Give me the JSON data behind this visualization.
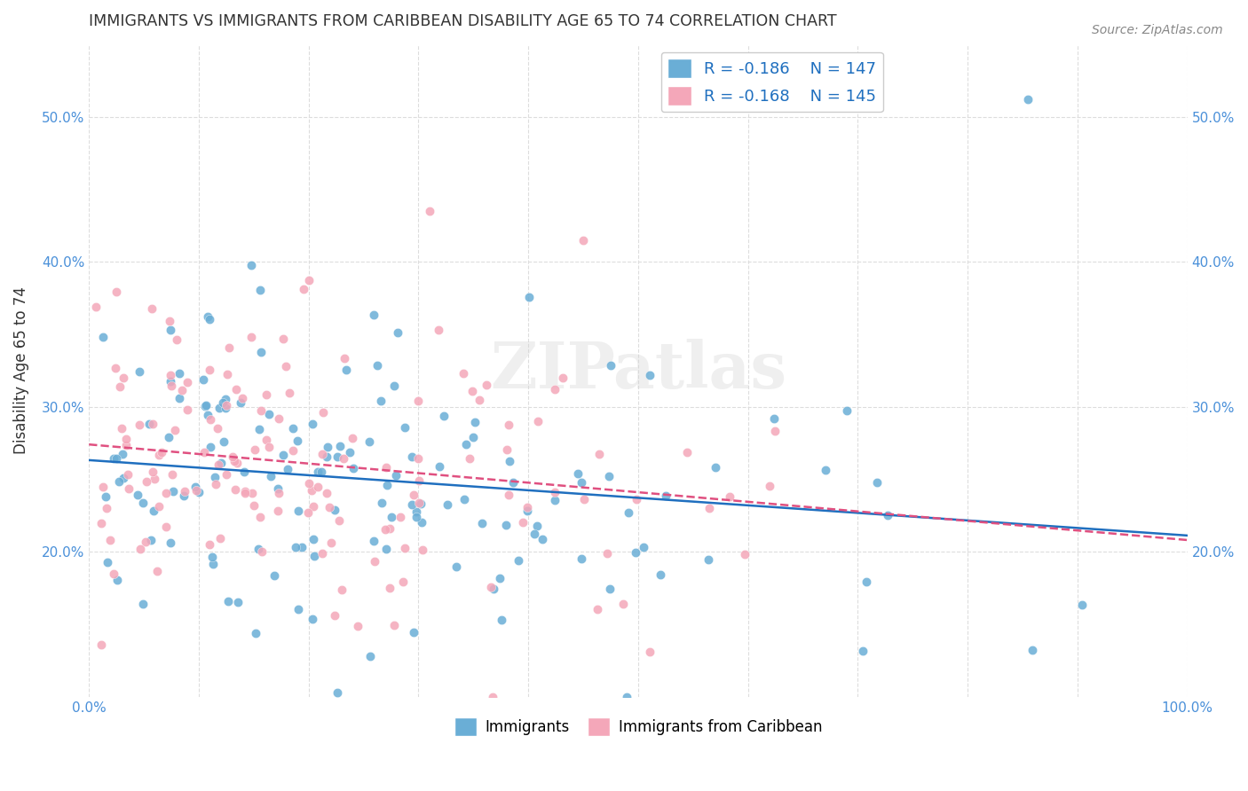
{
  "title": "IMMIGRANTS VS IMMIGRANTS FROM CARIBBEAN DISABILITY AGE 65 TO 74 CORRELATION CHART",
  "source": "Source: ZipAtlas.com",
  "ylabel": "Disability Age 65 to 74",
  "xlabel": "",
  "xlim": [
    0,
    1.0
  ],
  "ylim": [
    0.1,
    0.55
  ],
  "xticks": [
    0.0,
    0.1,
    0.2,
    0.3,
    0.4,
    0.5,
    0.6,
    0.7,
    0.8,
    0.9,
    1.0
  ],
  "xticklabels": [
    "0.0%",
    "",
    "",
    "",
    "",
    "",
    "",
    "",
    "",
    "",
    "100.0%"
  ],
  "yticks": [
    0.2,
    0.3,
    0.4,
    0.5
  ],
  "yticklabels": [
    "20.0%",
    "30.0%",
    "40.0%",
    "50.0%"
  ],
  "legend_R_blue": "R = -0.186",
  "legend_N_blue": "N = 147",
  "legend_R_pink": "R = -0.168",
  "legend_N_pink": "N = 145",
  "blue_color": "#6aaed6",
  "pink_color": "#f4a7b9",
  "blue_line_color": "#1f6fbf",
  "pink_line_color": "#e05080",
  "watermark": "ZIPatlas",
  "background_color": "#ffffff",
  "grid_color": "#dddddd",
  "title_color": "#333333",
  "axis_label_color": "#4a90d9",
  "tick_color": "#4a90d9",
  "R_blue": -0.186,
  "N_blue": 147,
  "R_pink": -0.168,
  "N_pink": 145,
  "seed_blue": 42,
  "seed_pink": 99
}
